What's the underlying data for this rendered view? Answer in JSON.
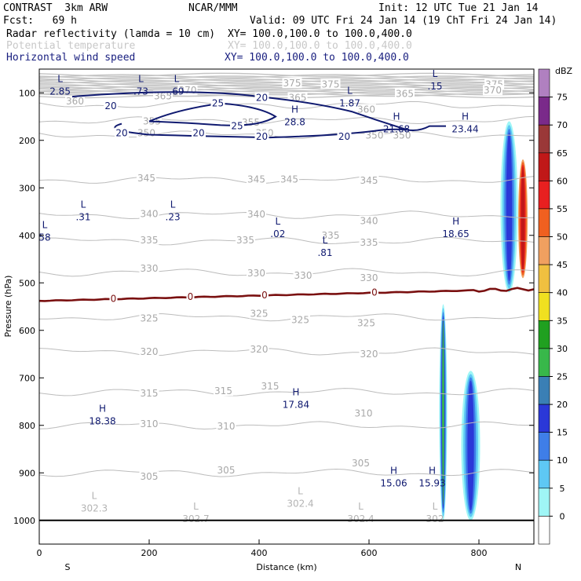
{
  "header": {
    "model": "CONTRAST  3km ARW",
    "org": "NCAR/MMM",
    "init": "Init: 12 UTC Tue 21 Jan 14",
    "fcst": "Fcst:   69 h",
    "valid": "Valid: 09 UTC Fri 24 Jan 14 (19 ChT Fri 24 Jan 14)",
    "fields": [
      {
        "name": "Radar reflectivity (lamda = 10 cm)",
        "xy": "XY= 100.0,100.0 to 100.0,400.0",
        "style": "black"
      },
      {
        "name": "Potential temperature",
        "xy": "XY= 100.0,100.0 to 100.0,400.0",
        "style": "faded"
      },
      {
        "name": "Horizontal wind speed",
        "xy": "XY= 100.0,100.0 to 100.0,400.0",
        "style": "navy"
      }
    ]
  },
  "chart_data": {
    "type": "cross-section",
    "xlabel": "Distance (km)",
    "ylabel": "Pressure (hPa)",
    "xlim": [
      0,
      900
    ],
    "ylim": [
      1050,
      50
    ],
    "x_ticks": [
      0,
      200,
      400,
      600,
      800
    ],
    "y_ticks": [
      100,
      200,
      300,
      400,
      500,
      600,
      700,
      800,
      900,
      1000
    ],
    "x_ends": {
      "left": "S",
      "right": "N"
    },
    "colorbar": {
      "unit": "dBZ",
      "levels": [
        0,
        5,
        10,
        15,
        20,
        25,
        30,
        35,
        40,
        45,
        50,
        55,
        60,
        65,
        70,
        75
      ],
      "colors": [
        "#ffffff",
        "#9ff6f6",
        "#5ec8f4",
        "#3f7ee8",
        "#2b38d8",
        "#3a7fb5",
        "#38b84a",
        "#20a020",
        "#f0e020",
        "#f0c040",
        "#f0a060",
        "#f06020",
        "#e82020",
        "#c01818",
        "#9a3838",
        "#7a2a8a",
        "#b080c0"
      ]
    },
    "theta_contours": [
      {
        "value": 375,
        "labels": [
          {
            "x": 460,
            "p": 80
          },
          {
            "x": 530,
            "p": 82
          },
          {
            "x": 828,
            "p": 82
          }
        ]
      },
      {
        "value": 370,
        "labels": [
          {
            "x": 270,
            "p": 95
          },
          {
            "x": 825,
            "p": 95
          }
        ]
      },
      {
        "value": 365,
        "labels": [
          {
            "x": 225,
            "p": 107
          },
          {
            "x": 470,
            "p": 110
          },
          {
            "x": 665,
            "p": 102
          }
        ]
      },
      {
        "value": 360,
        "labels": [
          {
            "x": 65,
            "p": 118
          },
          {
            "x": 595,
            "p": 135
          }
        ]
      },
      {
        "value": 355,
        "labels": [
          {
            "x": 205,
            "p": 160
          },
          {
            "x": 385,
            "p": 162
          }
        ]
      },
      {
        "value": 350,
        "labels": [
          {
            "x": 195,
            "p": 185
          },
          {
            "x": 410,
            "p": 185
          },
          {
            "x": 610,
            "p": 190
          },
          {
            "x": 660,
            "p": 190
          }
        ]
      },
      {
        "value": 345,
        "labels": [
          {
            "x": 195,
            "p": 280
          },
          {
            "x": 395,
            "p": 282
          },
          {
            "x": 455,
            "p": 282
          },
          {
            "x": 600,
            "p": 285
          }
        ]
      },
      {
        "value": 340,
        "labels": [
          {
            "x": 200,
            "p": 355
          },
          {
            "x": 395,
            "p": 356
          },
          {
            "x": 600,
            "p": 370
          }
        ]
      },
      {
        "value": 335,
        "labels": [
          {
            "x": 200,
            "p": 410
          },
          {
            "x": 375,
            "p": 410
          },
          {
            "x": 530,
            "p": 400
          },
          {
            "x": 600,
            "p": 415
          }
        ]
      },
      {
        "value": 330,
        "labels": [
          {
            "x": 200,
            "p": 470
          },
          {
            "x": 395,
            "p": 480
          },
          {
            "x": 480,
            "p": 485
          },
          {
            "x": 600,
            "p": 490
          }
        ]
      },
      {
        "value": 325,
        "labels": [
          {
            "x": 200,
            "p": 575
          },
          {
            "x": 400,
            "p": 565
          },
          {
            "x": 475,
            "p": 578
          },
          {
            "x": 595,
            "p": 585
          }
        ]
      },
      {
        "value": 320,
        "labels": [
          {
            "x": 200,
            "p": 645
          },
          {
            "x": 400,
            "p": 640
          },
          {
            "x": 600,
            "p": 650
          }
        ]
      },
      {
        "value": 315,
        "labels": [
          {
            "x": 200,
            "p": 733
          },
          {
            "x": 335,
            "p": 728
          },
          {
            "x": 420,
            "p": 718
          }
        ]
      },
      {
        "value": 310,
        "labels": [
          {
            "x": 200,
            "p": 797
          },
          {
            "x": 340,
            "p": 802
          },
          {
            "x": 590,
            "p": 775
          }
        ]
      },
      {
        "value": 305,
        "labels": [
          {
            "x": 200,
            "p": 908
          },
          {
            "x": 340,
            "p": 895
          },
          {
            "x": 585,
            "p": 880
          }
        ]
      }
    ],
    "theta_extrema": [
      {
        "type": "L",
        "value": "302.3",
        "x": 100,
        "p": 978
      },
      {
        "type": "L",
        "value": "302.7",
        "x": 285,
        "p": 1000
      },
      {
        "type": "L",
        "value": "302.4",
        "x": 475,
        "p": 968
      },
      {
        "type": "L",
        "value": "302.4",
        "x": 585,
        "p": 1000
      },
      {
        "type": "L",
        "value": "302",
        "x": 720,
        "p": 1000
      }
    ],
    "wind_contours": [
      {
        "value": 20,
        "labels": [
          {
            "x": 130,
            "p": 128
          },
          {
            "x": 150,
            "p": 185
          },
          {
            "x": 290,
            "p": 185
          },
          {
            "x": 405,
            "p": 110
          },
          {
            "x": 405,
            "p": 192
          },
          {
            "x": 555,
            "p": 192
          }
        ]
      },
      {
        "value": 25,
        "labels": [
          {
            "x": 325,
            "p": 122
          },
          {
            "x": 360,
            "p": 170
          }
        ]
      }
    ],
    "wind_extrema": [
      {
        "type": "L",
        "value": "2.85",
        "x": 38,
        "p": 100
      },
      {
        "type": "L",
        "value": ".73",
        "x": 185,
        "p": 100
      },
      {
        "type": "L",
        "value": ".69",
        "x": 250,
        "p": 100
      },
      {
        "type": "L",
        "value": "1.87",
        "x": 565,
        "p": 125
      },
      {
        "type": "L",
        "value": ".15",
        "x": 720,
        "p": 90
      },
      {
        "type": "H",
        "value": "28.8",
        "x": 465,
        "p": 165
      },
      {
        "type": "H",
        "value": "21.68",
        "x": 650,
        "p": 180
      },
      {
        "type": "H",
        "value": "23.44",
        "x": 775,
        "p": 180
      },
      {
        "type": "L",
        "value": ".31",
        "x": 80,
        "p": 365
      },
      {
        "type": "L",
        "value": ".23",
        "x": 243,
        "p": 365
      },
      {
        "type": "L",
        "value": ".02",
        "x": 434,
        "p": 400
      },
      {
        "type": "L",
        "value": ".81",
        "x": 520,
        "p": 440
      },
      {
        "type": "L",
        "value": "58",
        "x": 10,
        "p": 408
      },
      {
        "type": "H",
        "value": "18.65",
        "x": 758,
        "p": 400
      },
      {
        "type": "H",
        "value": "18.38",
        "x": 115,
        "p": 795
      },
      {
        "type": "H",
        "value": "17.84",
        "x": 467,
        "p": 760
      },
      {
        "type": "H",
        "value": "15.06",
        "x": 645,
        "p": 925
      },
      {
        "type": "H",
        "value": "15.93",
        "x": 715,
        "p": 925
      }
    ],
    "zero_line": {
      "value": "0",
      "labels": [
        {
          "x": 135
        },
        {
          "x": 275
        },
        {
          "x": 410
        },
        {
          "x": 610
        }
      ]
    }
  }
}
